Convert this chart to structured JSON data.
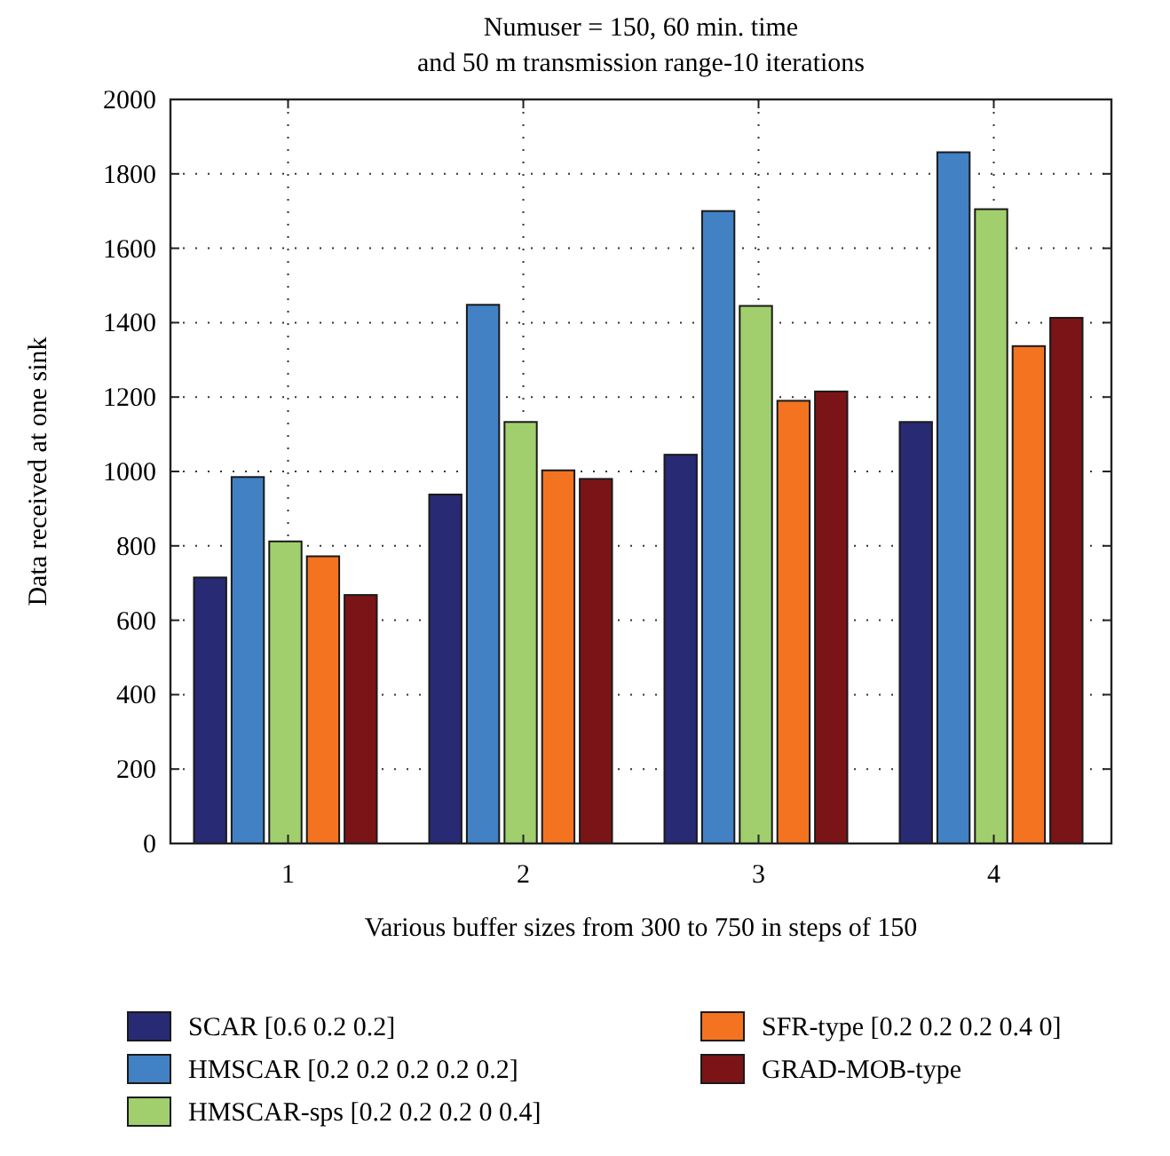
{
  "chart_data": {
    "type": "bar",
    "title": "Numuser = 150, 60 min. time\nand 50 m transmission range-10 iterations",
    "xlabel": "Various buffer sizes from 300 to 750 in steps of 150",
    "ylabel": "Data received at one sink",
    "categories": [
      "1",
      "2",
      "3",
      "4"
    ],
    "series": [
      {
        "name": "SCAR [0.6 0.2 0.2]",
        "color": "#282a74",
        "values": [
          715,
          938,
          1045,
          1133
        ]
      },
      {
        "name": "HMSCAR [0.2 0.2 0.2 0.2 0.2]",
        "color": "#4181c4",
        "values": [
          985,
          1448,
          1700,
          1858
        ]
      },
      {
        "name": "HMSCAR-sps [0.2 0.2 0.2 0 0.4]",
        "color": "#a1cf6d",
        "values": [
          812,
          1133,
          1445,
          1705
        ]
      },
      {
        "name": "SFR-type [0.2 0.2 0.2 0.4 0]",
        "color": "#f37321",
        "values": [
          772,
          1003,
          1190,
          1337
        ]
      },
      {
        "name": "GRAD-MOB-type",
        "color": "#7b1416",
        "values": [
          668,
          980,
          1215,
          1413
        ]
      }
    ],
    "ylim": [
      0,
      2000
    ],
    "yticks": [
      0,
      200,
      400,
      600,
      800,
      1000,
      1200,
      1400,
      1600,
      1800,
      2000
    ],
    "grid": true,
    "legend": "bottom"
  }
}
